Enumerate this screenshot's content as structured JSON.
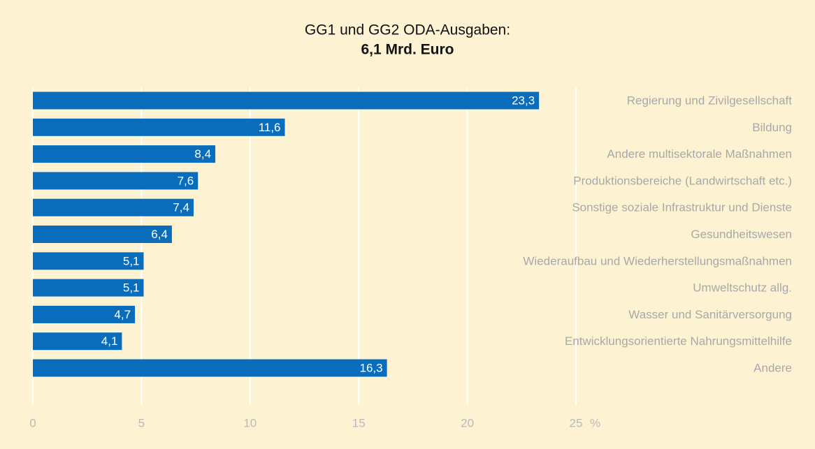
{
  "chart_data": {
    "type": "bar",
    "orientation": "horizontal",
    "title": "GG1 und GG2 ODA-Ausgaben:",
    "subtitle": "6,1 Mrd. Euro",
    "categories": [
      "Regierung und Zivilgesellschaft",
      "Bildung",
      "Andere multisektorale Maßnahmen",
      "Produktionsbereiche (Landwirtschaft etc.)",
      "Sonstige soziale Infrastruktur und Dienste",
      "Gesundheitswesen",
      "Wiederaufbau und Wiederherstellungsmaßnahmen",
      "Umweltschutz allg.",
      "Wasser und Sanitärversorgung",
      "Entwicklungsorientierte Nahrungsmittelhilfe",
      "Andere"
    ],
    "values": [
      23.3,
      11.6,
      8.4,
      7.6,
      7.4,
      6.4,
      5.1,
      5.1,
      4.7,
      4.1,
      16.3
    ],
    "value_labels": [
      "23,3",
      "11,6",
      "8,4",
      "7,6",
      "7,4",
      "6,4",
      "5,1",
      "5,1",
      "4,7",
      "4,1",
      "16,3"
    ],
    "color": "#0a6dbb",
    "xlim": [
      0,
      25
    ],
    "xticks": [
      0,
      5,
      10,
      15,
      20,
      25
    ],
    "x_unit": "%",
    "grid": true
  }
}
